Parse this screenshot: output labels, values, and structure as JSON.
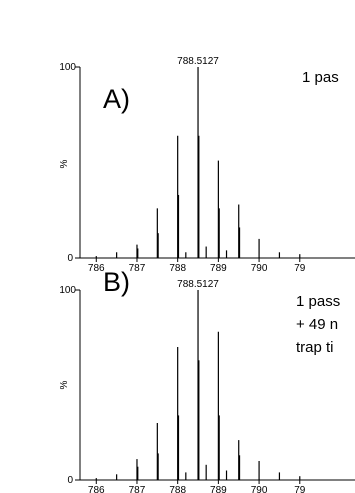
{
  "chart_data": [
    {
      "type": "bar",
      "panel_label": "A)",
      "annotation": [
        "1 pas"
      ],
      "ylabel": "%",
      "yticks": [
        "0",
        "100"
      ],
      "ylim": [
        0,
        100
      ],
      "xlim": [
        785.6,
        791.6
      ],
      "xticks": [
        "786",
        "787",
        "788",
        "789",
        "790",
        "79"
      ],
      "peak_label": "788.5127",
      "peaks": {
        "mz": [
          786.0,
          786.5,
          787.0,
          787.02,
          787.5,
          787.52,
          788.0,
          788.02,
          788.2,
          788.5,
          788.52,
          788.7,
          789.0,
          789.02,
          789.2,
          789.5,
          789.52,
          790.0,
          790.5,
          791.0
        ],
        "intensity": [
          1,
          3,
          7,
          5,
          26,
          13,
          64,
          33,
          3,
          100,
          64,
          6,
          51,
          26,
          4,
          28,
          16,
          10,
          3,
          2
        ]
      }
    },
    {
      "type": "bar",
      "panel_label": "B)",
      "annotation": [
        "1 pass",
        "+ 49 n",
        "trap ti"
      ],
      "ylabel": "%",
      "yticks": [
        "0",
        "100"
      ],
      "ylim": [
        0,
        100
      ],
      "xlim": [
        785.6,
        791.6
      ],
      "xticks": [
        "786",
        "787",
        "788",
        "789",
        "790",
        "79"
      ],
      "peak_label": "788.5127",
      "peaks": {
        "mz": [
          786.0,
          786.5,
          787.0,
          787.02,
          787.5,
          787.52,
          788.0,
          788.02,
          788.2,
          788.5,
          788.52,
          788.7,
          789.0,
          789.02,
          789.2,
          789.5,
          789.52,
          790.0,
          790.5,
          791.0
        ],
        "intensity": [
          1,
          3,
          11,
          7,
          30,
          14,
          70,
          34,
          4,
          100,
          63,
          8,
          78,
          34,
          5,
          21,
          13,
          10,
          4,
          2
        ]
      }
    }
  ]
}
